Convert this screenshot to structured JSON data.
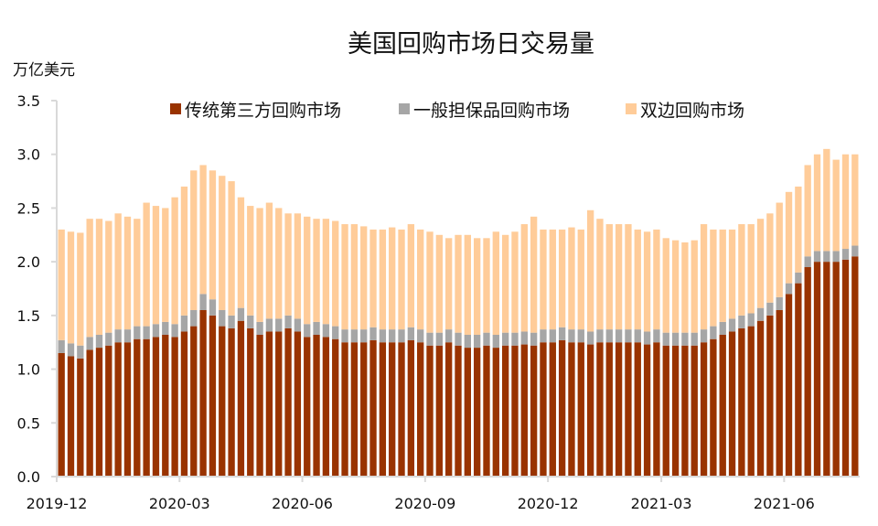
{
  "chart_data": {
    "type": "bar",
    "stacked": true,
    "title": "美国回购市场日交易量",
    "ylabel": "万亿美元",
    "xlabel": "",
    "ylim": [
      0,
      3.5
    ],
    "yticks": [
      "0.0",
      "0.5",
      "1.0",
      "1.5",
      "2.0",
      "2.5",
      "3.0",
      "3.5"
    ],
    "xticks": [
      {
        "label": "2019-12",
        "week": 0
      },
      {
        "label": "2020-03",
        "week": 13
      },
      {
        "label": "2020-06",
        "week": 26
      },
      {
        "label": "2020-09",
        "week": 39
      },
      {
        "label": "2020-12",
        "week": 52
      },
      {
        "label": "2021-03",
        "week": 64
      },
      {
        "label": "2021-06",
        "week": 77
      }
    ],
    "legend_position": "top",
    "x_unit": "week (Dec 2019 – Jul 2021, approx.)",
    "series": [
      {
        "name": "传统第三方回购市场",
        "color": "#993300",
        "values": [
          1.15,
          1.12,
          1.1,
          1.18,
          1.2,
          1.22,
          1.25,
          1.25,
          1.28,
          1.28,
          1.3,
          1.32,
          1.3,
          1.35,
          1.4,
          1.55,
          1.5,
          1.4,
          1.38,
          1.45,
          1.38,
          1.32,
          1.35,
          1.35,
          1.38,
          1.35,
          1.3,
          1.32,
          1.3,
          1.28,
          1.25,
          1.25,
          1.25,
          1.27,
          1.25,
          1.25,
          1.25,
          1.27,
          1.25,
          1.22,
          1.22,
          1.25,
          1.22,
          1.2,
          1.2,
          1.22,
          1.2,
          1.22,
          1.22,
          1.23,
          1.22,
          1.25,
          1.25,
          1.27,
          1.25,
          1.25,
          1.23,
          1.25,
          1.25,
          1.25,
          1.25,
          1.25,
          1.23,
          1.25,
          1.22,
          1.22,
          1.22,
          1.22,
          1.25,
          1.28,
          1.32,
          1.35,
          1.38,
          1.4,
          1.45,
          1.5,
          1.55,
          1.7,
          1.8,
          1.95,
          2.0,
          2.0,
          2.0,
          2.02,
          2.05
        ]
      },
      {
        "name": "一般担保品回购市场",
        "color": "#A6A6A6",
        "values": [
          0.12,
          0.12,
          0.12,
          0.12,
          0.12,
          0.12,
          0.12,
          0.12,
          0.12,
          0.12,
          0.12,
          0.12,
          0.12,
          0.15,
          0.15,
          0.15,
          0.15,
          0.15,
          0.12,
          0.12,
          0.12,
          0.12,
          0.12,
          0.12,
          0.12,
          0.12,
          0.12,
          0.12,
          0.12,
          0.12,
          0.12,
          0.12,
          0.12,
          0.12,
          0.12,
          0.12,
          0.12,
          0.12,
          0.12,
          0.12,
          0.12,
          0.12,
          0.12,
          0.12,
          0.12,
          0.12,
          0.12,
          0.12,
          0.12,
          0.12,
          0.12,
          0.12,
          0.12,
          0.12,
          0.12,
          0.12,
          0.12,
          0.12,
          0.12,
          0.12,
          0.12,
          0.12,
          0.12,
          0.12,
          0.12,
          0.12,
          0.12,
          0.12,
          0.12,
          0.12,
          0.12,
          0.12,
          0.12,
          0.12,
          0.12,
          0.12,
          0.12,
          0.1,
          0.1,
          0.1,
          0.1,
          0.1,
          0.1,
          0.1,
          0.1
        ]
      },
      {
        "name": "双边回购市场",
        "color": "#FFCC99",
        "values": [
          1.03,
          1.04,
          1.05,
          1.1,
          1.08,
          1.04,
          1.08,
          1.05,
          1.0,
          1.15,
          1.1,
          1.06,
          1.18,
          1.2,
          1.3,
          1.2,
          1.2,
          1.25,
          1.25,
          1.03,
          1.02,
          1.06,
          1.08,
          1.03,
          0.95,
          0.98,
          1.0,
          0.96,
          0.98,
          0.98,
          0.98,
          0.98,
          0.96,
          0.91,
          0.93,
          0.95,
          0.93,
          0.96,
          0.93,
          0.94,
          0.91,
          0.85,
          0.91,
          0.93,
          0.9,
          0.88,
          0.96,
          0.91,
          0.94,
          1.0,
          1.08,
          0.93,
          0.93,
          0.91,
          0.95,
          0.93,
          1.13,
          1.03,
          0.98,
          0.98,
          0.98,
          0.93,
          0.93,
          0.93,
          0.88,
          0.86,
          0.84,
          0.86,
          0.98,
          0.9,
          0.86,
          0.83,
          0.85,
          0.83,
          0.83,
          0.83,
          0.88,
          0.85,
          0.8,
          0.85,
          0.9,
          0.95,
          0.85,
          0.88,
          0.85
        ]
      }
    ]
  }
}
